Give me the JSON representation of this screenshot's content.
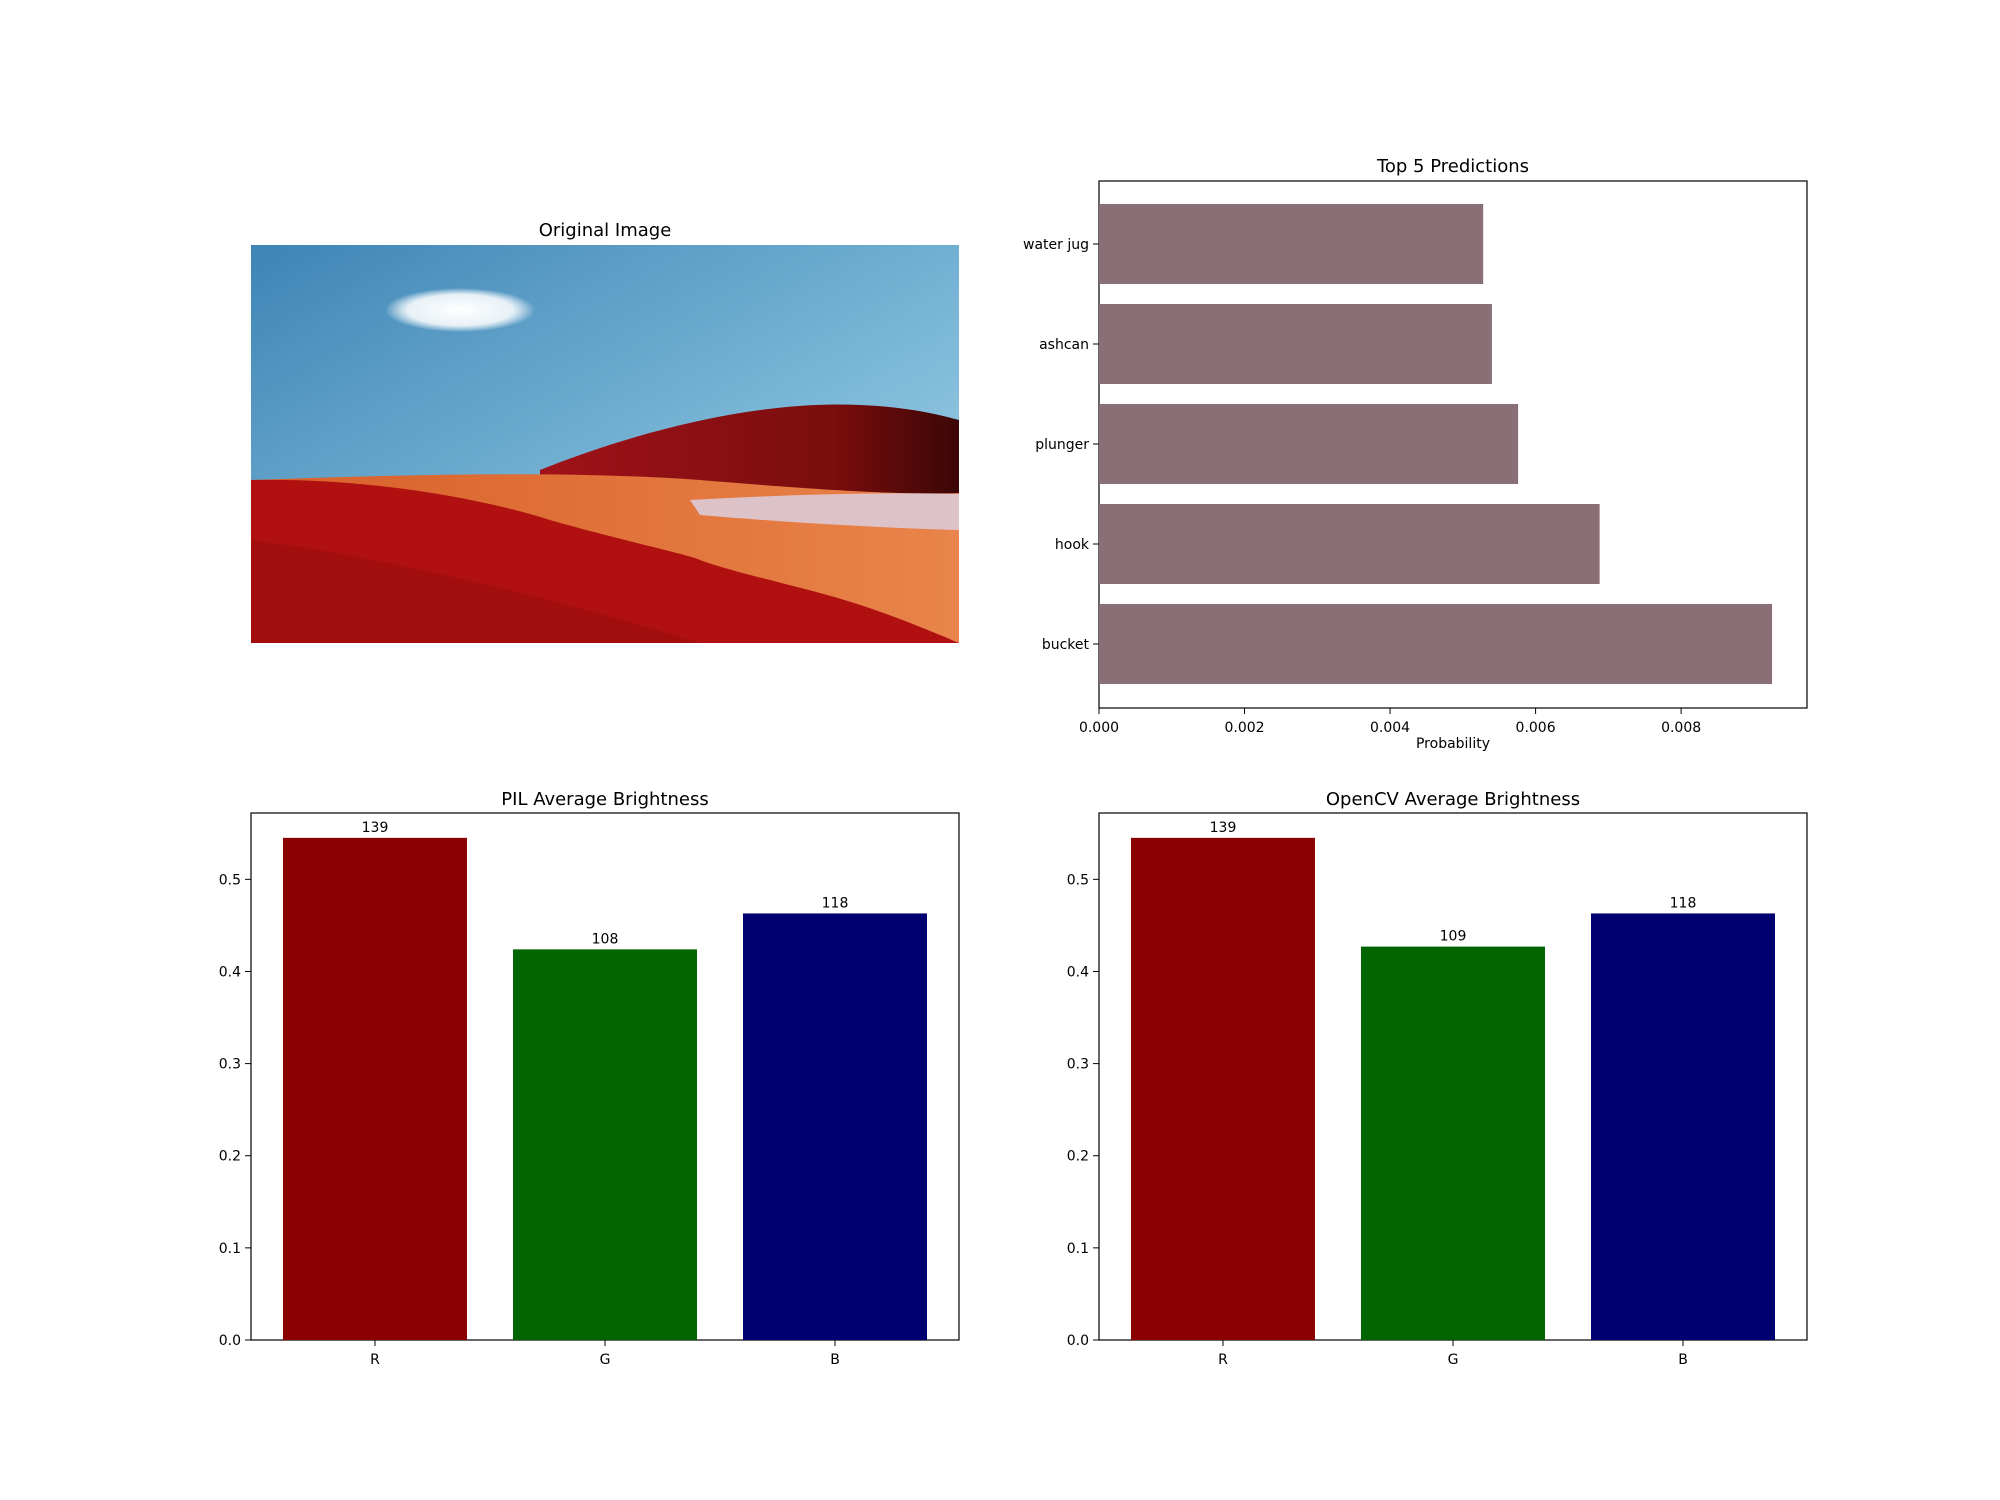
{
  "chart_data": [
    {
      "type": "image",
      "title": "Original Image"
    },
    {
      "type": "bar",
      "orientation": "horizontal",
      "title": "Top 5 Predictions",
      "xlabel": "Probability",
      "ylabel": "",
      "categories": [
        "bucket",
        "hook",
        "plunger",
        "ashcan",
        "water jug"
      ],
      "values": [
        0.00925,
        0.00688,
        0.00576,
        0.0054,
        0.00528
      ],
      "xlim": [
        0,
        0.00973
      ],
      "xticks": [
        "0.000",
        "0.002",
        "0.004",
        "0.006",
        "0.008"
      ],
      "xtick_values": [
        0,
        0.002,
        0.004,
        0.006,
        0.008
      ],
      "color": "#8b6f76"
    },
    {
      "type": "bar",
      "title": "PIL Average Brightness",
      "xlabel": "",
      "ylabel": "",
      "categories": [
        "R",
        "G",
        "B"
      ],
      "values": [
        0.545,
        0.424,
        0.463
      ],
      "data_labels": [
        "139",
        "108",
        "118"
      ],
      "colors": [
        "#8b0000",
        "#006400",
        "#000070"
      ],
      "ylim": [
        0,
        0.572
      ],
      "yticks": [
        "0.0",
        "0.1",
        "0.2",
        "0.3",
        "0.4",
        "0.5"
      ],
      "ytick_values": [
        0,
        0.1,
        0.2,
        0.3,
        0.4,
        0.5
      ]
    },
    {
      "type": "bar",
      "title": "OpenCV Average Brightness",
      "xlabel": "",
      "ylabel": "",
      "categories": [
        "R",
        "G",
        "B"
      ],
      "values": [
        0.545,
        0.427,
        0.463
      ],
      "data_labels": [
        "139",
        "109",
        "118"
      ],
      "colors": [
        "#8b0000",
        "#006400",
        "#000070"
      ],
      "ylim": [
        0,
        0.572
      ],
      "yticks": [
        "0.0",
        "0.1",
        "0.2",
        "0.3",
        "0.4",
        "0.5"
      ],
      "ytick_values": [
        0,
        0.1,
        0.2,
        0.3,
        0.4,
        0.5
      ]
    }
  ]
}
